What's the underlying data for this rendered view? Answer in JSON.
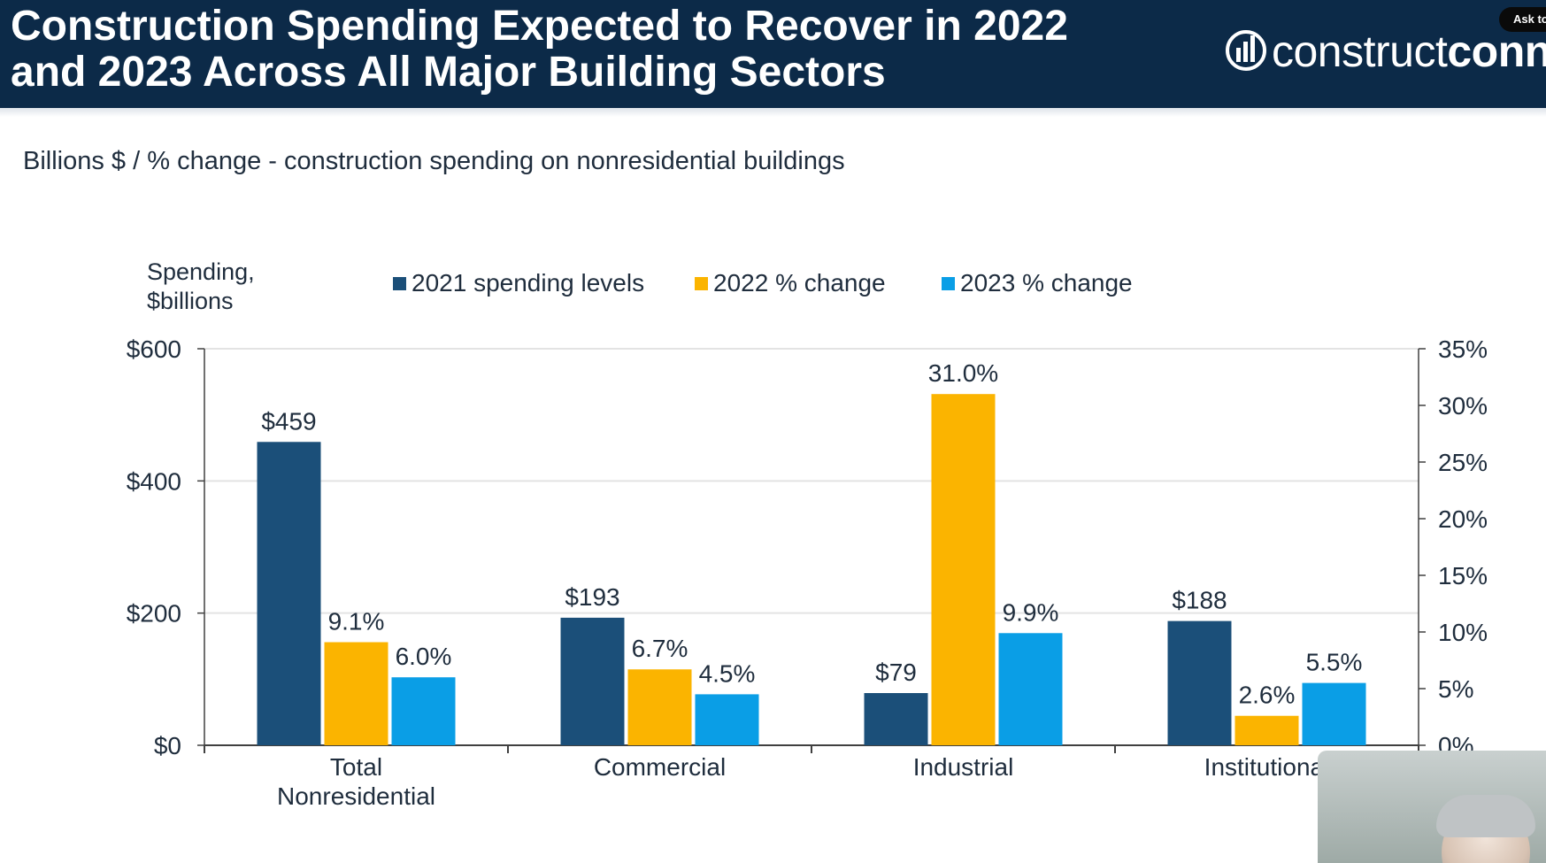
{
  "header": {
    "title": "Construction Spending Expected to Recover in 2022\nand 2023 Across All Major Building Sectors",
    "logo_text_light": "construct",
    "logo_text_bold": "conne",
    "ask_badge": "Ask to"
  },
  "subtitle": "Billions $ / % change - construction spending on nonresidential buildings",
  "colors": {
    "header_bg": "#0c2a48",
    "spending": "#1b4f79",
    "change_2022": "#fbb400",
    "change_2023": "#0a9ee6",
    "axis": "#404040"
  },
  "chart_data": {
    "type": "bar",
    "left_axis_title": [
      "Spending,",
      "$billions"
    ],
    "categories": [
      [
        "Total",
        "Nonresidential"
      ],
      [
        "Commercial"
      ],
      [
        "Industrial"
      ],
      [
        "Institutional"
      ]
    ],
    "series": [
      {
        "name": "2021 spending levels",
        "axis": "left",
        "values": [
          459,
          193,
          79,
          188
        ],
        "labels": [
          "$459",
          "$193",
          "$79",
          "$188"
        ]
      },
      {
        "name": "2022 % change",
        "axis": "right",
        "values": [
          9.1,
          6.7,
          31.0,
          2.6
        ],
        "labels": [
          "9.1%",
          "6.7%",
          "31.0%",
          "2.6%"
        ]
      },
      {
        "name": "2023 % change",
        "axis": "right",
        "values": [
          6.0,
          4.5,
          9.9,
          5.5
        ],
        "labels": [
          "6.0%",
          "4.5%",
          "9.9%",
          "5.5%"
        ]
      }
    ],
    "left_axis": {
      "min": 0,
      "max": 600,
      "ticks": [
        0,
        200,
        400,
        600
      ],
      "tick_labels": [
        "$0",
        "$200",
        "$400",
        "$600"
      ]
    },
    "right_axis": {
      "min": 0,
      "max": 35,
      "ticks": [
        0,
        5,
        10,
        15,
        20,
        25,
        30,
        35
      ],
      "tick_labels": [
        "0%",
        "5%",
        "10%",
        "15%",
        "20%",
        "25%",
        "30%",
        "35%"
      ]
    },
    "grid": true,
    "legend_position": "top"
  }
}
